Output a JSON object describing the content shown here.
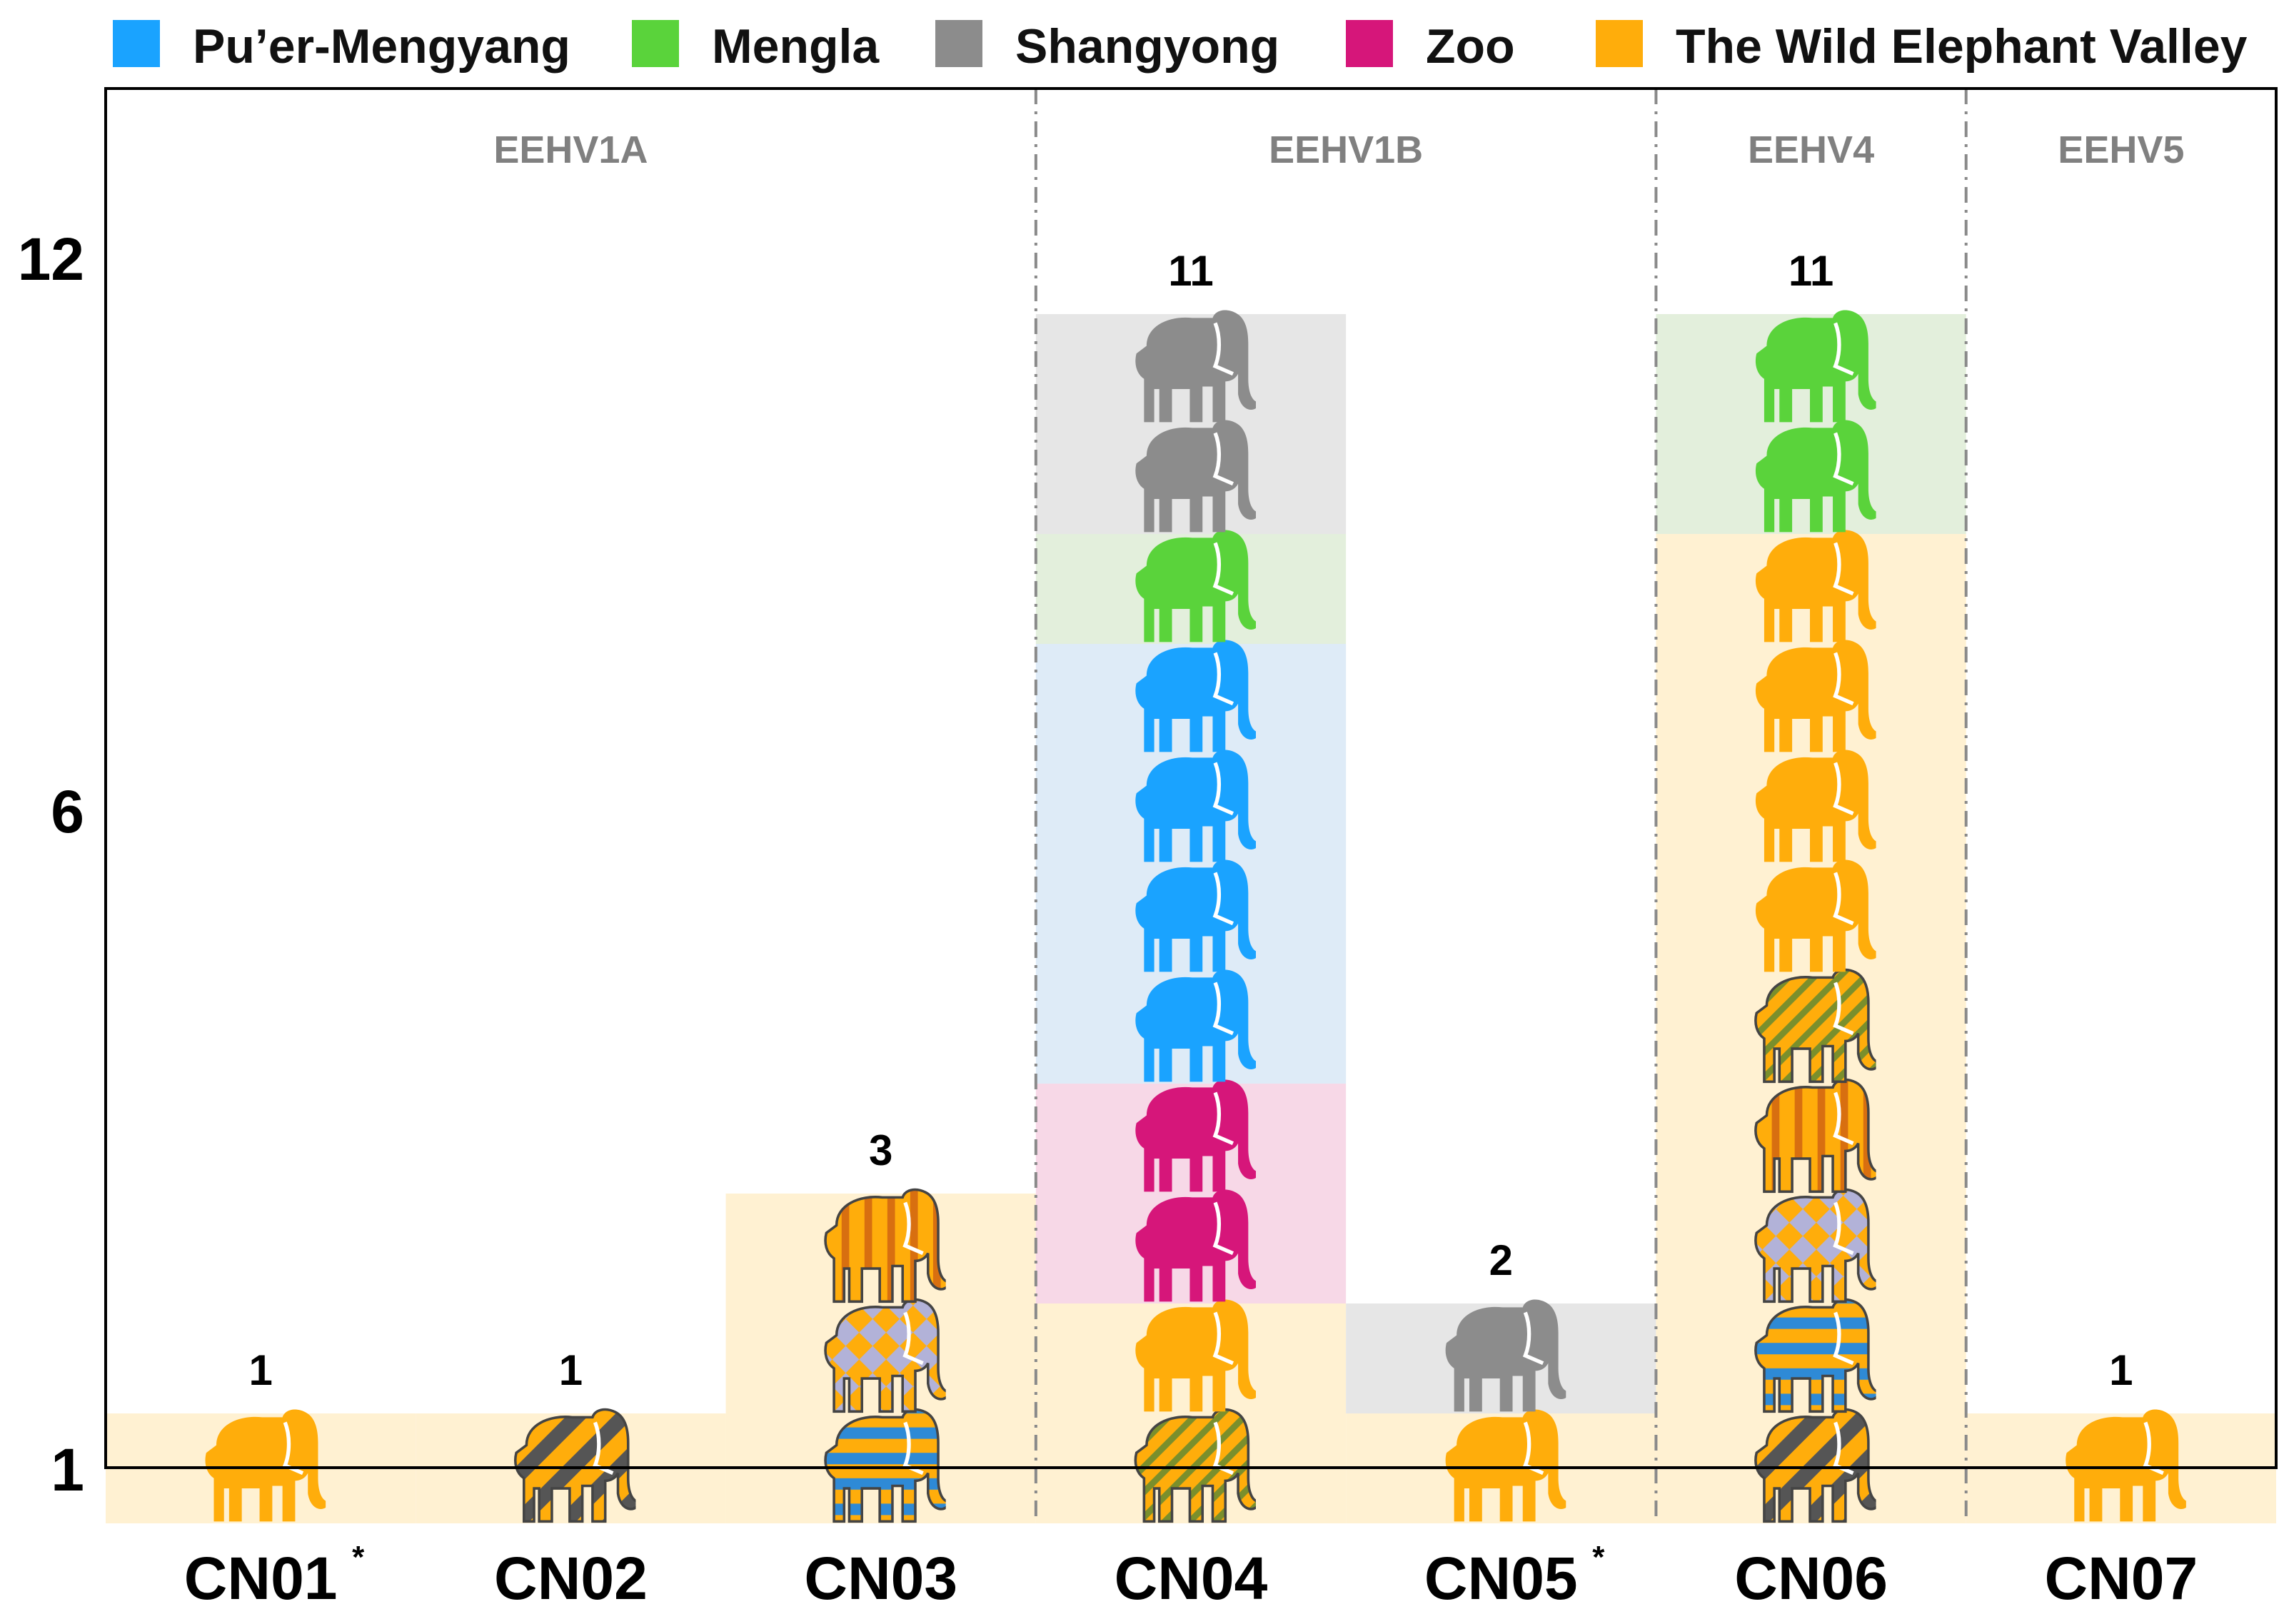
{
  "chart_data": {
    "type": "bar",
    "title": "",
    "xlabel": "",
    "ylabel": "",
    "ylim": [
      0,
      13
    ],
    "yticks": [
      "1",
      "6",
      "12"
    ],
    "legend": {
      "position": "top",
      "entries": [
        {
          "name": "Pu’er-Mengyang",
          "color": "#1aa3ff"
        },
        {
          "name": "Mengla",
          "color": "#5ad33b"
        },
        {
          "name": "Shangyong",
          "color": "#8c8c8c"
        },
        {
          "name": "Zoo",
          "color": "#d6167a"
        },
        {
          "name": "The Wild Elephant Valley",
          "color": "#ffad0b"
        }
      ]
    },
    "groups": [
      {
        "label": "EEHV1A",
        "categories": [
          "CN01",
          "CN02",
          "CN03"
        ]
      },
      {
        "label": "EEHV1B",
        "categories": [
          "CN04",
          "CN05"
        ]
      },
      {
        "label": "EEHV4",
        "categories": [
          "CN06"
        ]
      },
      {
        "label": "EEHV5",
        "categories": [
          "CN07"
        ]
      }
    ],
    "categories": [
      "CN01",
      "CN02",
      "CN03",
      "CN04",
      "CN05",
      "CN06",
      "CN07"
    ],
    "category_star": [
      true,
      false,
      false,
      false,
      true,
      false,
      false
    ],
    "totals": [
      1,
      1,
      3,
      11,
      2,
      11,
      1
    ],
    "bars": [
      {
        "category": "CN01",
        "stack": [
          [
            "The Wild Elephant Valley",
            "solid"
          ]
        ]
      },
      {
        "category": "CN02",
        "stack": [
          [
            "The Wild Elephant Valley",
            "diag-dark"
          ]
        ]
      },
      {
        "category": "CN03",
        "stack": [
          [
            "The Wild Elephant Valley",
            "hstripe-blue"
          ],
          [
            "The Wild Elephant Valley",
            "check-lavender"
          ],
          [
            "The Wild Elephant Valley",
            "vstripe-orange"
          ]
        ]
      },
      {
        "category": "CN04",
        "stack": [
          [
            "The Wild Elephant Valley",
            "hatch-olive"
          ],
          [
            "The Wild Elephant Valley",
            "solid"
          ],
          [
            "Zoo",
            "solid"
          ],
          [
            "Zoo",
            "solid"
          ],
          [
            "Pu’er-Mengyang",
            "solid"
          ],
          [
            "Pu’er-Mengyang",
            "solid"
          ],
          [
            "Pu’er-Mengyang",
            "solid"
          ],
          [
            "Pu’er-Mengyang",
            "solid"
          ],
          [
            "Mengla",
            "solid"
          ],
          [
            "Shangyong",
            "solid"
          ],
          [
            "Shangyong",
            "solid"
          ]
        ]
      },
      {
        "category": "CN05",
        "stack": [
          [
            "The Wild Elephant Valley",
            "solid"
          ],
          [
            "Shangyong",
            "solid"
          ]
        ]
      },
      {
        "category": "CN06",
        "stack": [
          [
            "The Wild Elephant Valley",
            "diag-dark"
          ],
          [
            "The Wild Elephant Valley",
            "hstripe-blue"
          ],
          [
            "The Wild Elephant Valley",
            "check-lavender"
          ],
          [
            "The Wild Elephant Valley",
            "vstripe-orange"
          ],
          [
            "The Wild Elephant Valley",
            "hatch-olive"
          ],
          [
            "The Wild Elephant Valley",
            "solid"
          ],
          [
            "The Wild Elephant Valley",
            "solid"
          ],
          [
            "The Wild Elephant Valley",
            "solid"
          ],
          [
            "The Wild Elephant Valley",
            "solid"
          ],
          [
            "Mengla",
            "solid"
          ],
          [
            "Mengla",
            "solid"
          ]
        ]
      },
      {
        "category": "CN07",
        "stack": [
          [
            "The Wild Elephant Valley",
            "solid"
          ]
        ]
      }
    ],
    "background_tints": {
      "Pu’er-Mengyang": "#deebf7",
      "Mengla": "#e3efdc",
      "Shangyong": "#e6e6e6",
      "Zoo": "#f7d8e7",
      "The Wild Elephant Valley": "#fff1d2"
    }
  }
}
